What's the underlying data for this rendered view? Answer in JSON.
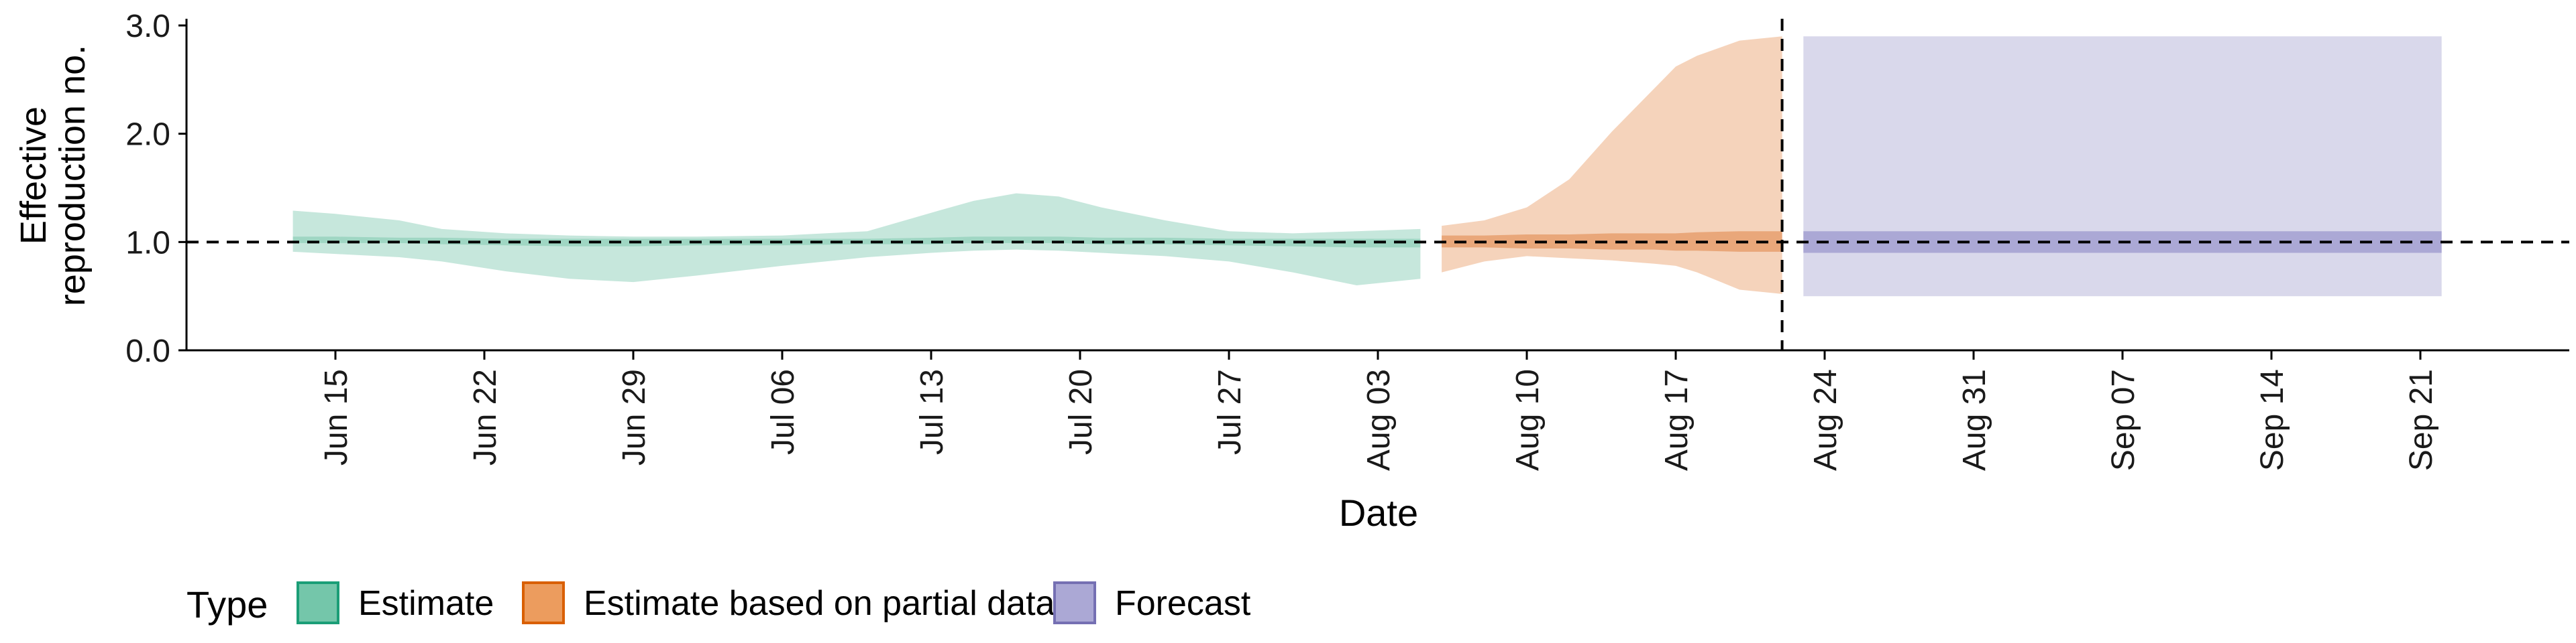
{
  "chart_data": {
    "type": "area",
    "xlabel": "Date",
    "ylabel_lines": [
      "Effective",
      "reproduction no."
    ],
    "ylim": [
      0.0,
      3.0
    ],
    "y_ticks": [
      0.0,
      1.0,
      2.0,
      3.0
    ],
    "y_tick_labels": [
      "0.0",
      "1.0",
      "2.0",
      "3.0"
    ],
    "x_range": [
      "2020-06-08",
      "2020-09-28"
    ],
    "x_ticks": [
      "2020-06-15",
      "2020-06-22",
      "2020-06-29",
      "2020-07-06",
      "2020-07-13",
      "2020-07-20",
      "2020-07-27",
      "2020-08-03",
      "2020-08-10",
      "2020-08-17",
      "2020-08-24",
      "2020-08-31",
      "2020-09-07",
      "2020-09-14",
      "2020-09-21"
    ],
    "x_tick_labels": [
      "Jun 15",
      "Jun 22",
      "Jun 29",
      "Jul 06",
      "Jul 13",
      "Jul 20",
      "Jul 27",
      "Aug 03",
      "Aug 10",
      "Aug 17",
      "Aug 24",
      "Aug 31",
      "Sep 07",
      "Sep 14",
      "Sep 21"
    ],
    "reference_line_y": 1.0,
    "forecast_start_line_x": "2020-08-22",
    "legend": {
      "title": "Type",
      "placement": "bottom-left",
      "entries": [
        {
          "label": "Estimate",
          "fill": "#74c6aa",
          "stroke": "#1b9e77"
        },
        {
          "label": "Estimate based on partial data",
          "fill": "#ec9c5e",
          "stroke": "#d95f02"
        },
        {
          "label": "Forecast",
          "fill": "#aba8d5",
          "stroke": "#7570b3"
        }
      ]
    },
    "series": [
      {
        "name": "Estimate",
        "outer_color": "#c6e7dc",
        "inner_color": "#9fd6c3",
        "x": [
          "2020-06-13",
          "2020-06-15",
          "2020-06-18",
          "2020-06-20",
          "2020-06-23",
          "2020-06-26",
          "2020-06-29",
          "2020-07-02",
          "2020-07-06",
          "2020-07-10",
          "2020-07-13",
          "2020-07-15",
          "2020-07-17",
          "2020-07-19",
          "2020-07-21",
          "2020-07-24",
          "2020-07-27",
          "2020-07-30",
          "2020-08-02",
          "2020-08-05"
        ],
        "upper_90": [
          1.29,
          1.26,
          1.2,
          1.12,
          1.08,
          1.06,
          1.05,
          1.05,
          1.06,
          1.1,
          1.27,
          1.38,
          1.45,
          1.42,
          1.32,
          1.2,
          1.1,
          1.08,
          1.1,
          1.12
        ],
        "lower_90": [
          0.91,
          0.89,
          0.86,
          0.82,
          0.73,
          0.66,
          0.63,
          0.69,
          0.78,
          0.86,
          0.9,
          0.92,
          0.93,
          0.92,
          0.9,
          0.87,
          0.82,
          0.72,
          0.6,
          0.66
        ],
        "upper_50": [
          1.05,
          1.05,
          1.04,
          1.04,
          1.03,
          1.03,
          1.03,
          1.03,
          1.03,
          1.03,
          1.04,
          1.05,
          1.05,
          1.05,
          1.04,
          1.04,
          1.03,
          1.03,
          1.03,
          1.03
        ],
        "lower_50": [
          0.99,
          0.99,
          0.99,
          0.98,
          0.97,
          0.96,
          0.96,
          0.97,
          0.97,
          0.98,
          0.98,
          0.99,
          0.99,
          0.99,
          0.98,
          0.98,
          0.97,
          0.96,
          0.95,
          0.95
        ]
      },
      {
        "name": "Estimate based on partial data",
        "outer_color": "#f5d3bb",
        "inner_color": "#e9a77a",
        "x": [
          "2020-08-06",
          "2020-08-08",
          "2020-08-10",
          "2020-08-12",
          "2020-08-14",
          "2020-08-16",
          "2020-08-17",
          "2020-08-18",
          "2020-08-20",
          "2020-08-22"
        ],
        "upper_90": [
          1.15,
          1.2,
          1.32,
          1.58,
          2.02,
          2.42,
          2.62,
          2.72,
          2.86,
          2.9
        ],
        "lower_90": [
          0.72,
          0.82,
          0.87,
          0.85,
          0.83,
          0.8,
          0.78,
          0.72,
          0.56,
          0.52
        ],
        "upper_50": [
          1.06,
          1.06,
          1.07,
          1.07,
          1.08,
          1.08,
          1.08,
          1.09,
          1.1,
          1.1
        ],
        "lower_50": [
          0.95,
          0.95,
          0.94,
          0.94,
          0.93,
          0.93,
          0.92,
          0.92,
          0.91,
          0.91
        ]
      },
      {
        "name": "Forecast",
        "outer_color": "#d9d8eb",
        "inner_color": "#aba8d5",
        "x": [
          "2020-08-23",
          "2020-09-22"
        ],
        "upper_90": [
          2.9,
          2.9
        ],
        "lower_90": [
          0.5,
          0.5
        ],
        "upper_50": [
          1.1,
          1.1
        ],
        "lower_50": [
          0.9,
          0.9
        ]
      }
    ]
  }
}
